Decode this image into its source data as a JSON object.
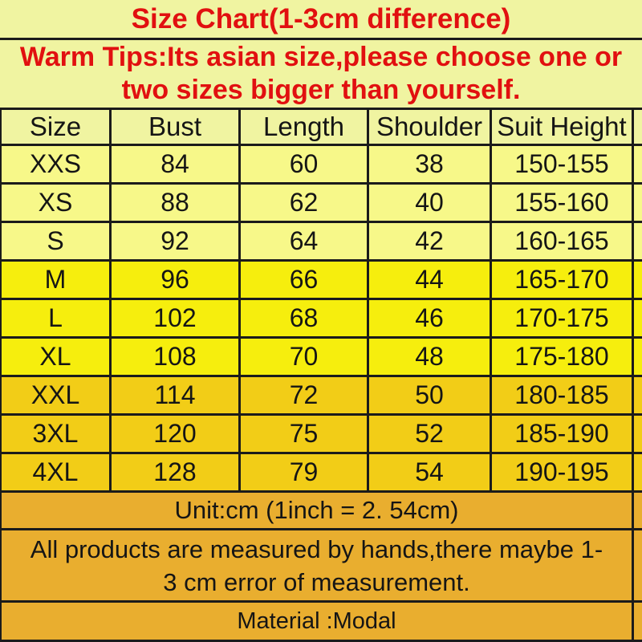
{
  "title": "Size Chart(1-3cm difference)",
  "warm_tips": {
    "line1": "Warm Tips:Its asian size,please choose one or",
    "line2": "two sizes bigger than yourself."
  },
  "chart_data": {
    "type": "table",
    "title": "Size Chart(1-3cm difference)",
    "columns": [
      "Size",
      "Bust",
      "Length",
      "Shoulder",
      "Suit Height"
    ],
    "rows": [
      {
        "size": "XXS",
        "bust": 84,
        "length": 60,
        "shoulder": 38,
        "suit_height": "150-155",
        "tier": "pale"
      },
      {
        "size": "XS",
        "bust": 88,
        "length": 62,
        "shoulder": 40,
        "suit_height": "155-160",
        "tier": "pale"
      },
      {
        "size": "S",
        "bust": 92,
        "length": 64,
        "shoulder": 42,
        "suit_height": "160-165",
        "tier": "pale"
      },
      {
        "size": "M",
        "bust": 96,
        "length": 66,
        "shoulder": 44,
        "suit_height": "165-170",
        "tier": "yellow"
      },
      {
        "size": "L",
        "bust": 102,
        "length": 68,
        "shoulder": 46,
        "suit_height": "170-175",
        "tier": "yellow"
      },
      {
        "size": "XL",
        "bust": 108,
        "length": 70,
        "shoulder": 48,
        "suit_height": "175-180",
        "tier": "yellow"
      },
      {
        "size": "XXL",
        "bust": 114,
        "length": 72,
        "shoulder": 50,
        "suit_height": "180-185",
        "tier": "gold"
      },
      {
        "size": "3XL",
        "bust": 120,
        "length": 75,
        "shoulder": 52,
        "suit_height": "185-190",
        "tier": "gold"
      },
      {
        "size": "4XL",
        "bust": 128,
        "length": 79,
        "shoulder": 54,
        "suit_height": "190-195",
        "tier": "gold"
      }
    ],
    "unit_note": "Unit:cm (1inch = 2. 54cm)",
    "notes": "All products are measured by hands,there maybe 1-3 cm error of measurement. Material :Modal"
  },
  "footer": {
    "unit_note": "Unit:cm (1inch = 2. 54cm)",
    "measure_note_line1": "All products are measured by hands,there maybe 1-",
    "measure_note_line2": "3 cm error of measurement.",
    "material_note": "Material :Modal"
  },
  "colors": {
    "top_band": "#f0f4a1",
    "row_pale": "#f7f889",
    "row_yellow": "#f6ee0d",
    "row_gold": "#f2cd17",
    "bottom_band": "#e9ae2f",
    "red_text": "#e11010",
    "black_text": "#151515",
    "border": "#1b1b1b"
  }
}
